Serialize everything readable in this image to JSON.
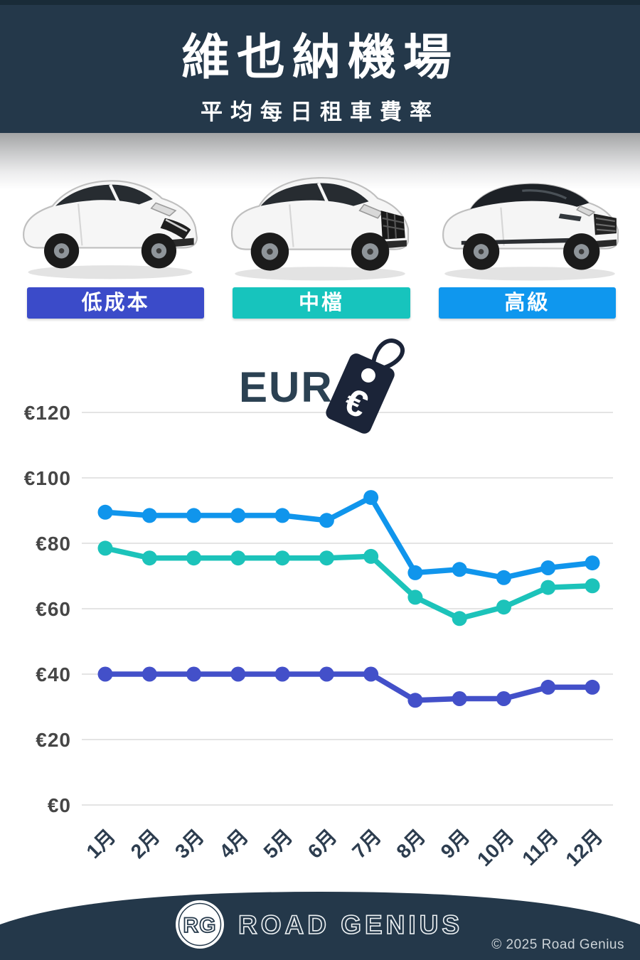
{
  "header": {
    "title": "維也納機場",
    "subtitle": "平均每日租車費率"
  },
  "categories": [
    {
      "label": "低成本",
      "color": "#3b4bc9"
    },
    {
      "label": "中檔",
      "color": "#17c4bd"
    },
    {
      "label": "高級",
      "color": "#0f97ee"
    }
  ],
  "currency": {
    "code": "EUR",
    "symbol": "€"
  },
  "chart_data": {
    "type": "line",
    "x": [
      "1月",
      "2月",
      "3月",
      "4月",
      "5月",
      "6月",
      "7月",
      "8月",
      "9月",
      "10月",
      "11月",
      "12月"
    ],
    "series": [
      {
        "name": "高級",
        "color": "#1095ec",
        "values": [
          89.5,
          88.5,
          88.5,
          88.5,
          88.5,
          87,
          94,
          71,
          72,
          69.5,
          72.5,
          74
        ]
      },
      {
        "name": "中檔",
        "color": "#1cc3ba",
        "values": [
          78.5,
          75.5,
          75.5,
          75.5,
          75.5,
          75.5,
          76,
          63.5,
          57,
          60.5,
          66.5,
          67
        ]
      },
      {
        "name": "低成本",
        "color": "#4350c9",
        "values": [
          40,
          40,
          40,
          40,
          40,
          40,
          40,
          32,
          32.5,
          32.5,
          36,
          36
        ]
      }
    ],
    "ylabel_prefix": "€",
    "yticks": [
      0,
      20,
      40,
      60,
      80,
      100,
      120
    ],
    "ylim": [
      0,
      120
    ],
    "grid": true,
    "legend_position": "category buttons above chart"
  },
  "footer": {
    "logo_initials": "RG",
    "brand": "ROAD GENIUS",
    "copyright": "© 2025 Road Genius"
  },
  "colors": {
    "header_bg": "#24384a",
    "tag": "#1b2438",
    "gridline": "#e4e4e4",
    "ytick_text": "#464646",
    "xtick_text": "#2d3d4f"
  }
}
